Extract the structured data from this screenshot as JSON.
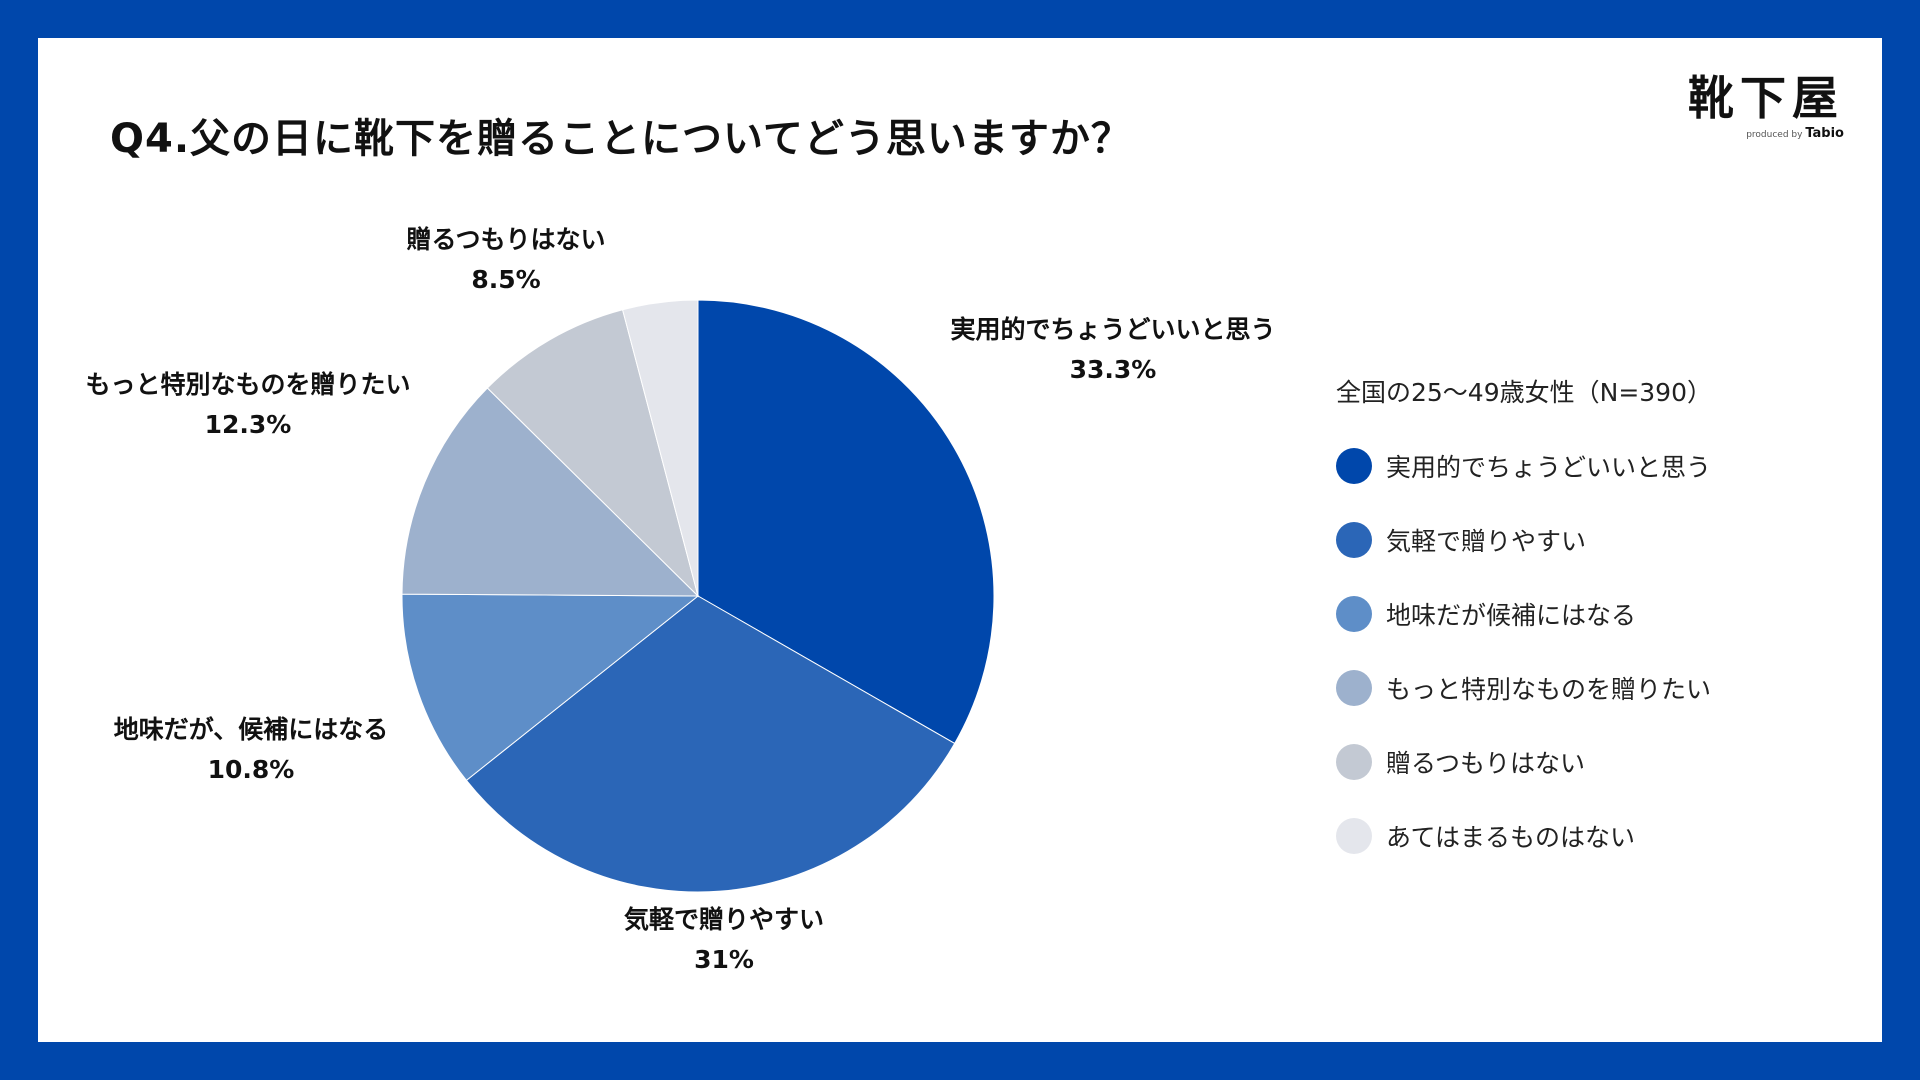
{
  "chart_data": {
    "type": "pie",
    "title": "Q4.父の日に靴下を贈ることについてどう思いますか？",
    "legend_caption": "全国の25〜49歳女性（N=390）",
    "legend_position": "right",
    "slices": [
      {
        "legend": "実用的でちょうどいいと思う",
        "label": "実用的でちょうどいいと思う",
        "value": 33.3,
        "value_label": "33.3%",
        "color": "#0047ab"
      },
      {
        "legend": "気軽で贈りやすい",
        "label": "気軽で贈りやすい",
        "value": 31,
        "value_label": "31%",
        "color": "#2b66b7"
      },
      {
        "legend": "地味だが候補にはなる",
        "label": "地味だが、候補にはなる",
        "value": 10.8,
        "value_label": "10.8%",
        "color": "#5e8ec8"
      },
      {
        "legend": "もっと特別なものを贈りたい",
        "label": "もっと特別なものを贈りたい",
        "value": 12.3,
        "value_label": "12.3%",
        "color": "#9db1cd"
      },
      {
        "legend": " 贈るつもりはない",
        "label": "贈るつもりはない",
        "value": 8.5,
        "value_label": "8.5%",
        "color": "#c3c9d3"
      },
      {
        "legend": "あてはまるものはない",
        "label": "",
        "value": 4.1,
        "value_label": "",
        "color": "#e4e6ec"
      }
    ]
  },
  "logo": {
    "mark": "靴下屋",
    "sub_prefix": "produced by",
    "sub_brand": "Tabio"
  }
}
